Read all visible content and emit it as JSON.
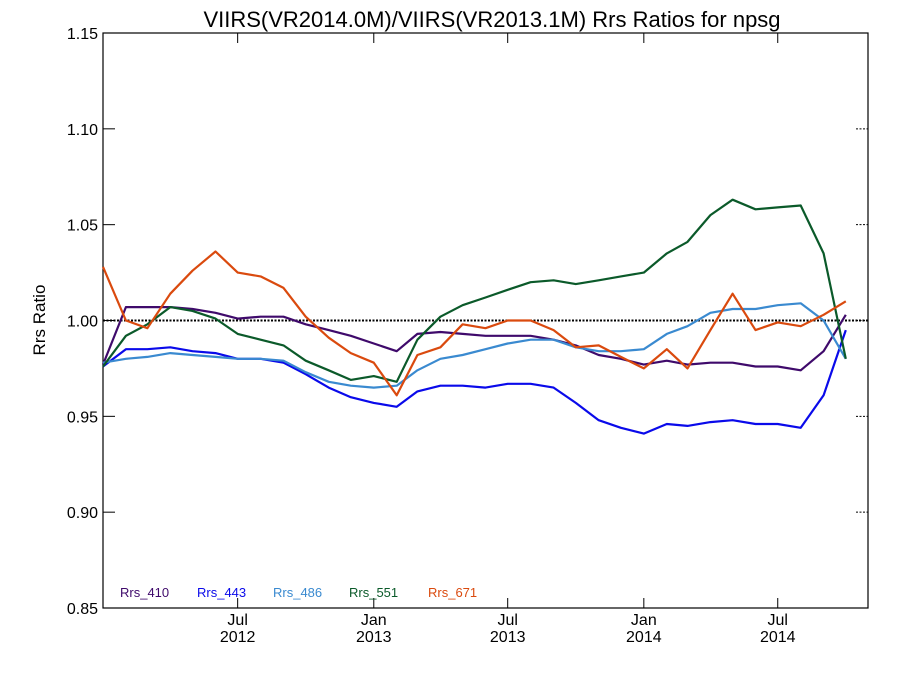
{
  "chart_data": {
    "type": "line",
    "title": "VIIRS(VR2014.0M)/VIIRS(VR2013.1M)  Rrs Ratios for npsg",
    "xlabel": "",
    "ylabel": "Rrs Ratio",
    "ylim": [
      0.85,
      1.15
    ],
    "xlim": [
      "2012-01-01",
      "2014-10-31"
    ],
    "y_ticks": [
      "0.85",
      "0.90",
      "0.95",
      "1.00",
      "1.05",
      "1.10",
      "1.15"
    ],
    "x_ticks": [
      {
        "date": "2012-07-01",
        "month": "Jul",
        "year": "2012"
      },
      {
        "date": "2013-01-01",
        "month": "Jan",
        "year": "2013"
      },
      {
        "date": "2013-07-01",
        "month": "Jul",
        "year": "2013"
      },
      {
        "date": "2014-01-01",
        "month": "Jan",
        "year": "2014"
      },
      {
        "date": "2014-07-01",
        "month": "Jul",
        "year": "2014"
      }
    ],
    "reference_line": 1.0,
    "x": [
      "2012-01-01",
      "2012-02-01",
      "2012-03-01",
      "2012-04-01",
      "2012-05-01",
      "2012-06-01",
      "2012-07-01",
      "2012-08-01",
      "2012-09-01",
      "2012-10-01",
      "2012-11-01",
      "2012-12-01",
      "2013-01-01",
      "2013-02-01",
      "2013-03-01",
      "2013-04-01",
      "2013-05-01",
      "2013-06-01",
      "2013-07-01",
      "2013-08-01",
      "2013-09-01",
      "2013-10-01",
      "2013-11-01",
      "2013-12-01",
      "2014-01-01",
      "2014-02-01",
      "2014-03-01",
      "2014-04-01",
      "2014-05-01",
      "2014-06-01",
      "2014-07-01",
      "2014-08-01",
      "2014-09-01",
      "2014-10-01"
    ],
    "series": [
      {
        "name": "Rrs_410",
        "color": "#3f0a6b",
        "values": [
          0.977,
          1.007,
          1.007,
          1.007,
          1.006,
          1.004,
          1.001,
          1.002,
          1.002,
          0.998,
          0.995,
          0.992,
          0.988,
          0.984,
          0.993,
          0.994,
          0.993,
          0.992,
          0.992,
          0.992,
          0.99,
          0.987,
          0.982,
          0.98,
          0.977,
          0.979,
          0.977,
          0.978,
          0.978,
          0.976,
          0.976,
          0.974,
          0.984,
          1.003
        ]
      },
      {
        "name": "Rrs_443",
        "color": "#0a0aea",
        "values": [
          0.976,
          0.985,
          0.985,
          0.986,
          0.984,
          0.983,
          0.98,
          0.98,
          0.978,
          0.972,
          0.965,
          0.96,
          0.957,
          0.955,
          0.963,
          0.966,
          0.966,
          0.965,
          0.967,
          0.967,
          0.965,
          0.957,
          0.948,
          0.944,
          0.941,
          0.946,
          0.945,
          0.947,
          0.948,
          0.946,
          0.946,
          0.944,
          0.961,
          0.995
        ]
      },
      {
        "name": "Rrs_486",
        "color": "#3a8ad0",
        "values": [
          0.978,
          0.98,
          0.981,
          0.983,
          0.982,
          0.981,
          0.98,
          0.98,
          0.979,
          0.973,
          0.968,
          0.966,
          0.965,
          0.966,
          0.974,
          0.98,
          0.982,
          0.985,
          0.988,
          0.99,
          0.99,
          0.986,
          0.984,
          0.984,
          0.985,
          0.993,
          0.997,
          1.004,
          1.006,
          1.006,
          1.008,
          1.009,
          1.0,
          0.98
        ]
      },
      {
        "name": "Rrs_551",
        "color": "#0b5a2a",
        "values": [
          0.976,
          0.992,
          0.998,
          1.007,
          1.005,
          1.001,
          0.993,
          0.99,
          0.987,
          0.979,
          0.974,
          0.969,
          0.971,
          0.968,
          0.99,
          1.002,
          1.008,
          1.012,
          1.016,
          1.02,
          1.021,
          1.019,
          1.021,
          1.023,
          1.025,
          1.035,
          1.041,
          1.055,
          1.063,
          1.058,
          1.059,
          1.06,
          1.035,
          0.98
        ]
      },
      {
        "name": "Rrs_671",
        "color": "#da4a0e",
        "values": [
          1.028,
          1.0,
          0.996,
          1.014,
          1.026,
          1.036,
          1.025,
          1.023,
          1.017,
          1.002,
          0.991,
          0.983,
          0.978,
          0.961,
          0.982,
          0.986,
          0.998,
          0.996,
          1.0,
          1.0,
          0.995,
          0.986,
          0.987,
          0.981,
          0.975,
          0.985,
          0.975,
          0.995,
          1.014,
          0.995,
          0.999,
          0.997,
          1.003,
          1.01
        ]
      }
    ],
    "legend_position": "bottom-left",
    "grid": false
  }
}
